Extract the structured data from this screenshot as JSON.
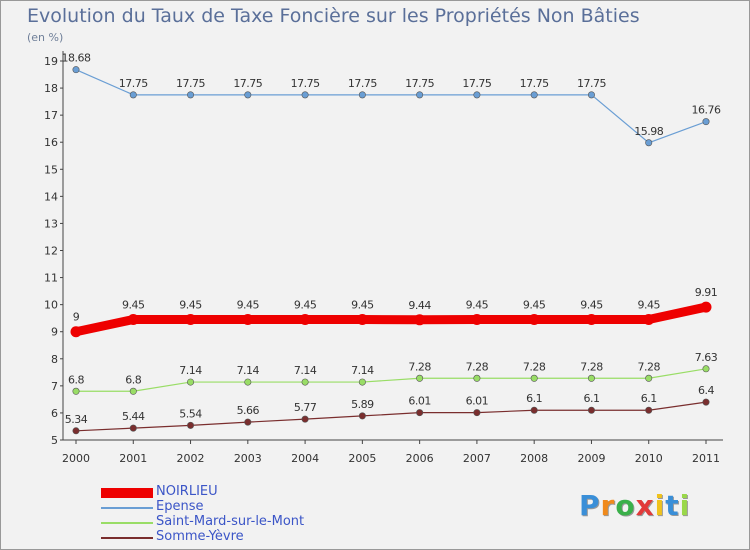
{
  "chart_data": {
    "type": "line",
    "title": "Evolution du Taux de Taxe Foncière sur les Propriétés Non Bâties",
    "subtitle": "(en %)",
    "categories": [
      "2000",
      "2001",
      "2002",
      "2003",
      "2004",
      "2005",
      "2006",
      "2007",
      "2008",
      "2009",
      "2010",
      "2011"
    ],
    "y_ticks": [
      "5",
      "6",
      "7",
      "8",
      "9",
      "10",
      "11",
      "12",
      "13",
      "14",
      "15",
      "16",
      "17",
      "18",
      "19"
    ],
    "ylim": [
      5,
      19
    ],
    "series": [
      {
        "name": "NOIRLIEU",
        "color": "#ee0000",
        "values": [
          9,
          9.45,
          9.45,
          9.45,
          9.45,
          9.45,
          9.44,
          9.45,
          9.45,
          9.45,
          9.45,
          9.91
        ],
        "labels": [
          "9",
          "9.45",
          "9.45",
          "9.45",
          "9.45",
          "9.45",
          "9.44",
          "9.45",
          "9.45",
          "9.45",
          "9.45",
          "9.91"
        ]
      },
      {
        "name": "Epense",
        "color": "#6a9ed4",
        "values": [
          18.68,
          17.75,
          17.75,
          17.75,
          17.75,
          17.75,
          17.75,
          17.75,
          17.75,
          17.75,
          15.98,
          16.76
        ],
        "labels": [
          "18.68",
          "17.75",
          "17.75",
          "17.75",
          "17.75",
          "17.75",
          "17.75",
          "17.75",
          "17.75",
          "17.75",
          "15.98",
          "16.76"
        ]
      },
      {
        "name": "Saint-Mard-sur-le-Mont",
        "color": "#99dd66",
        "values": [
          6.8,
          6.8,
          7.14,
          7.14,
          7.14,
          7.14,
          7.28,
          7.28,
          7.28,
          7.28,
          7.28,
          7.63
        ],
        "labels": [
          "6.8",
          "6.8",
          "7.14",
          "7.14",
          "7.14",
          "7.14",
          "7.28",
          "7.28",
          "7.28",
          "7.28",
          "7.28",
          "7.63"
        ]
      },
      {
        "name": "Somme-Yèvre",
        "color": "#7a2e2e",
        "values": [
          5.34,
          5.44,
          5.54,
          5.66,
          5.77,
          5.89,
          6.01,
          6.01,
          6.1,
          6.1,
          6.1,
          6.4
        ],
        "labels": [
          "5.34",
          "5.44",
          "5.54",
          "5.66",
          "5.77",
          "5.89",
          "6.01",
          "6.01",
          "6.1",
          "6.1",
          "6.1",
          "6.4"
        ]
      }
    ],
    "legend_position": "bottom-left",
    "grid": false
  },
  "logo": {
    "letters": [
      "P",
      "r",
      "o",
      "x",
      "i",
      "t",
      "i"
    ],
    "colors": [
      "#3a8fd8",
      "#f08a1c",
      "#3ab04a",
      "#e23a3a",
      "#f0c21c",
      "#3a8fd8",
      "#9ad84a"
    ]
  }
}
